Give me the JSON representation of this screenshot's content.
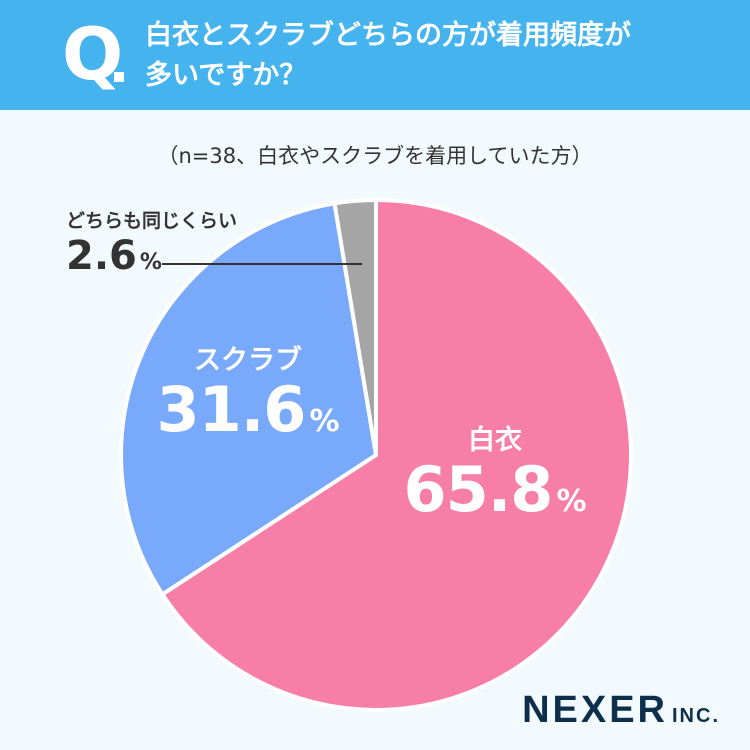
{
  "question": {
    "mark": "Q",
    "line1": "白衣とスクラブどちらの方が着用頻度が",
    "line2": "多いですか？"
  },
  "subtitle": "（n=38、白衣やスクラブを着用していた方）",
  "chart_data": {
    "type": "pie",
    "categories": [
      "白衣",
      "スクラブ",
      "どちらも同じくらい"
    ],
    "values": [
      65.8,
      31.6,
      2.6
    ],
    "unit": "%",
    "colors": [
      "#f77ea7",
      "#78a9fa",
      "#a5a5a5"
    ],
    "value_labels": [
      "65.8",
      "31.6",
      "2.6"
    ],
    "start_angle_deg": 0,
    "direction": "clockwise"
  },
  "logo": {
    "main": "NEXER",
    "sub": "INC."
  }
}
